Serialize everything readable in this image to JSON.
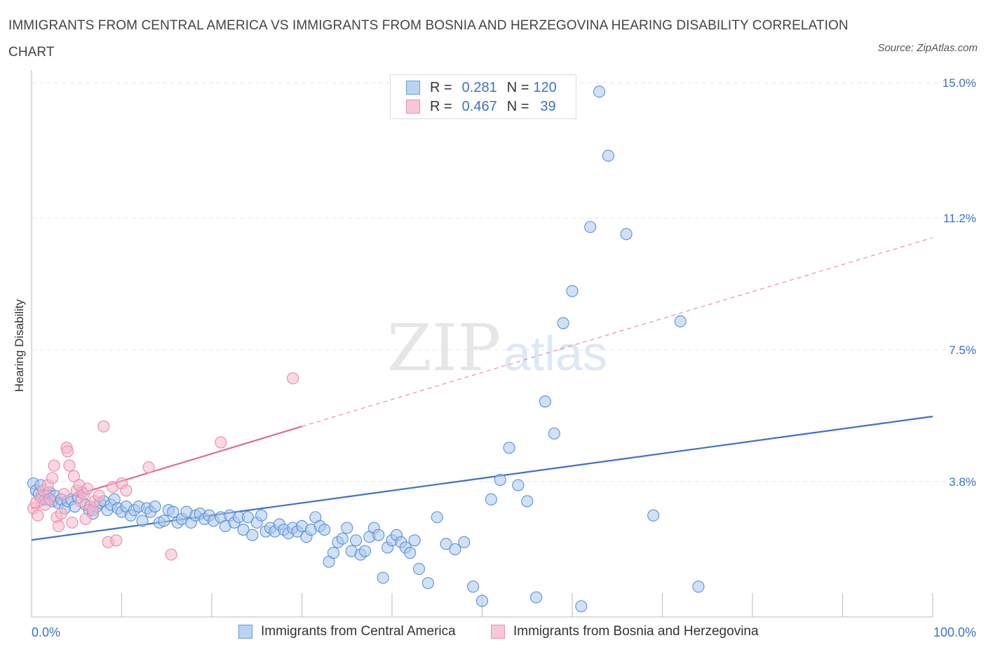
{
  "title": "IMMIGRANTS FROM CENTRAL AMERICA VS IMMIGRANTS FROM BOSNIA AND HERZEGOVINA HEARING DISABILITY CORRELATION CHART",
  "source": "Source: ZipAtlas.com",
  "watermark": {
    "zip": "ZIP",
    "atlas": "atlas"
  },
  "legend": {
    "rows": [
      {
        "r_label": "R =",
        "r_value": "0.281",
        "n_label": "N =",
        "n_value": "120"
      },
      {
        "r_label": "R =",
        "r_value": "0.467",
        "n_label": "N =",
        "n_value": "39"
      }
    ]
  },
  "colors": {
    "blue": "#3b72c8",
    "blue_fill": "#a9c8f0",
    "pink": "#e06a97",
    "pink_fill": "#f5b8cc",
    "axis_label": "#3b72c8",
    "grid": "#e4e4e4"
  },
  "chart_data": {
    "type": "scatter",
    "title": "IMMIGRANTS FROM CENTRAL AMERICA VS IMMIGRANTS FROM BOSNIA AND HERZEGOVINA HEARING DISABILITY CORRELATION CHART",
    "xlabel": "",
    "ylabel": "Hearing Disability",
    "xlim": [
      0,
      100
    ],
    "ylim": [
      0,
      15
    ],
    "x_tick_labels": [
      "0.0%",
      "100.0%"
    ],
    "y_ticks": [
      3.8,
      7.5,
      11.2,
      15.0
    ],
    "y_tick_labels": [
      "3.8%",
      "7.5%",
      "11.2%",
      "15.0%"
    ],
    "grid": true,
    "legend_position": "top-center",
    "series": [
      {
        "name": "Immigrants from Central America",
        "color": "#3b72c8",
        "trend": {
          "x": [
            0,
            100
          ],
          "y": [
            2.16,
            5.63
          ]
        },
        "points": [
          [
            0.2,
            3.75
          ],
          [
            0.5,
            3.55
          ],
          [
            0.8,
            3.45
          ],
          [
            1.0,
            3.7
          ],
          [
            1.2,
            3.35
          ],
          [
            1.5,
            3.3
          ],
          [
            1.8,
            3.45
          ],
          [
            2.0,
            3.5
          ],
          [
            2.3,
            3.25
          ],
          [
            2.6,
            3.4
          ],
          [
            3.0,
            3.2
          ],
          [
            3.3,
            3.3
          ],
          [
            3.7,
            3.05
          ],
          [
            4.0,
            3.25
          ],
          [
            4.4,
            3.3
          ],
          [
            4.8,
            3.1
          ],
          [
            5.2,
            3.35
          ],
          [
            5.6,
            3.5
          ],
          [
            6.0,
            3.15
          ],
          [
            6.4,
            3.0
          ],
          [
            6.8,
            2.9
          ],
          [
            7.2,
            3.1
          ],
          [
            7.6,
            3.2
          ],
          [
            8.0,
            3.25
          ],
          [
            8.4,
            3.0
          ],
          [
            8.8,
            3.15
          ],
          [
            9.2,
            3.3
          ],
          [
            9.6,
            3.05
          ],
          [
            10.0,
            2.95
          ],
          [
            10.5,
            3.1
          ],
          [
            11.0,
            2.85
          ],
          [
            11.4,
            3.0
          ],
          [
            11.9,
            3.1
          ],
          [
            12.3,
            2.7
          ],
          [
            12.8,
            3.05
          ],
          [
            13.2,
            2.95
          ],
          [
            13.7,
            3.1
          ],
          [
            14.2,
            2.65
          ],
          [
            14.7,
            2.7
          ],
          [
            15.2,
            3.0
          ],
          [
            15.7,
            2.95
          ],
          [
            16.2,
            2.65
          ],
          [
            16.7,
            2.75
          ],
          [
            17.2,
            2.95
          ],
          [
            17.7,
            2.65
          ],
          [
            18.2,
            2.85
          ],
          [
            18.7,
            2.9
          ],
          [
            19.2,
            2.75
          ],
          [
            19.7,
            2.85
          ],
          [
            20.2,
            2.7
          ],
          [
            21.0,
            2.8
          ],
          [
            21.5,
            2.55
          ],
          [
            22.0,
            2.85
          ],
          [
            22.5,
            2.65
          ],
          [
            23.0,
            2.8
          ],
          [
            23.5,
            2.45
          ],
          [
            24.0,
            2.8
          ],
          [
            24.5,
            2.3
          ],
          [
            25.0,
            2.65
          ],
          [
            25.5,
            2.85
          ],
          [
            26.0,
            2.4
          ],
          [
            26.5,
            2.5
          ],
          [
            27.0,
            2.4
          ],
          [
            27.5,
            2.6
          ],
          [
            28.0,
            2.45
          ],
          [
            28.5,
            2.35
          ],
          [
            29.0,
            2.5
          ],
          [
            29.5,
            2.4
          ],
          [
            30.0,
            2.55
          ],
          [
            30.5,
            2.25
          ],
          [
            31.0,
            2.45
          ],
          [
            31.5,
            2.8
          ],
          [
            32.0,
            2.55
          ],
          [
            32.5,
            2.45
          ],
          [
            33.0,
            1.55
          ],
          [
            33.5,
            1.8
          ],
          [
            34.0,
            2.1
          ],
          [
            34.5,
            2.2
          ],
          [
            35.0,
            2.5
          ],
          [
            35.5,
            1.85
          ],
          [
            36.0,
            2.15
          ],
          [
            36.5,
            1.75
          ],
          [
            37.0,
            1.85
          ],
          [
            37.5,
            2.25
          ],
          [
            38.0,
            2.5
          ],
          [
            38.5,
            2.3
          ],
          [
            39.0,
            1.1
          ],
          [
            39.5,
            1.95
          ],
          [
            40.0,
            2.15
          ],
          [
            40.5,
            2.3
          ],
          [
            41.0,
            2.1
          ],
          [
            41.5,
            1.95
          ],
          [
            42.0,
            1.8
          ],
          [
            42.5,
            2.15
          ],
          [
            43.0,
            1.35
          ],
          [
            44.0,
            0.95
          ],
          [
            45.0,
            2.8
          ],
          [
            46.0,
            2.05
          ],
          [
            47.0,
            1.9
          ],
          [
            48.0,
            2.1
          ],
          [
            49.0,
            0.85
          ],
          [
            50.0,
            0.45
          ],
          [
            51.0,
            3.3
          ],
          [
            52.0,
            3.85
          ],
          [
            53.0,
            4.75
          ],
          [
            54.0,
            3.7
          ],
          [
            55.0,
            3.25
          ],
          [
            56.0,
            0.55
          ],
          [
            57.0,
            6.05
          ],
          [
            58.0,
            5.15
          ],
          [
            59.0,
            8.25
          ],
          [
            60.0,
            9.15
          ],
          [
            61.0,
            0.3
          ],
          [
            62.0,
            10.95
          ],
          [
            63.0,
            14.75
          ],
          [
            64.0,
            12.95
          ],
          [
            66.0,
            10.75
          ],
          [
            69.0,
            2.85
          ],
          [
            72.0,
            8.3
          ],
          [
            74.0,
            0.85
          ]
        ]
      },
      {
        "name": "Immigrants from Bosnia and Herzegovina",
        "color": "#e06a97",
        "trend": {
          "x": [
            0,
            30
          ],
          "y": [
            3.05,
            5.35
          ]
        },
        "trend_extension": {
          "x": [
            30,
            100
          ],
          "y": [
            5.35,
            10.65
          ]
        },
        "points": [
          [
            0.2,
            3.05
          ],
          [
            0.5,
            3.2
          ],
          [
            0.7,
            2.85
          ],
          [
            1.0,
            3.35
          ],
          [
            1.3,
            3.55
          ],
          [
            1.5,
            3.15
          ],
          [
            1.8,
            3.7
          ],
          [
            2.0,
            3.3
          ],
          [
            2.3,
            3.9
          ],
          [
            2.5,
            4.25
          ],
          [
            2.8,
            2.8
          ],
          [
            3.0,
            2.55
          ],
          [
            3.3,
            2.9
          ],
          [
            3.6,
            3.45
          ],
          [
            3.9,
            4.75
          ],
          [
            4.0,
            4.65
          ],
          [
            4.2,
            4.25
          ],
          [
            4.5,
            2.65
          ],
          [
            4.7,
            3.95
          ],
          [
            5.0,
            3.55
          ],
          [
            5.3,
            3.7
          ],
          [
            5.5,
            3.25
          ],
          [
            5.8,
            3.45
          ],
          [
            6.0,
            2.75
          ],
          [
            6.2,
            3.6
          ],
          [
            6.5,
            3.1
          ],
          [
            6.8,
            3.0
          ],
          [
            7.0,
            3.25
          ],
          [
            7.5,
            3.4
          ],
          [
            8.0,
            5.35
          ],
          [
            8.5,
            2.1
          ],
          [
            9.0,
            3.65
          ],
          [
            9.4,
            2.15
          ],
          [
            10.0,
            3.75
          ],
          [
            10.5,
            3.55
          ],
          [
            13.0,
            4.2
          ],
          [
            15.5,
            1.75
          ],
          [
            21.0,
            4.9
          ],
          [
            29.0,
            6.7
          ]
        ]
      }
    ]
  },
  "bottom_legend": [
    {
      "label": "Immigrants from Central America"
    },
    {
      "label": "Immigrants from Bosnia and Herzegovina"
    }
  ]
}
